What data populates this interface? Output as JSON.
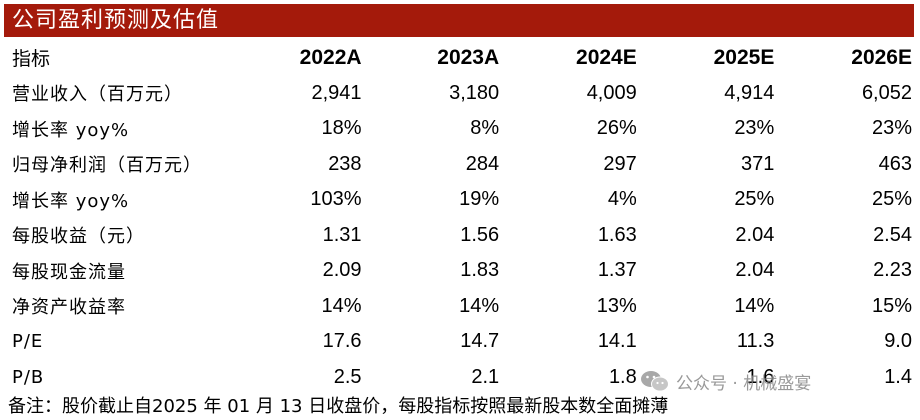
{
  "title": "公司盈利预测及估值",
  "header": {
    "label": "指标",
    "years": [
      "2022A",
      "2023A",
      "2024E",
      "2025E",
      "2026E"
    ]
  },
  "rows": [
    {
      "label": "营业收入（百万元）",
      "values": [
        "2,941",
        "3,180",
        "4,009",
        "4,914",
        "6,052"
      ]
    },
    {
      "label": "增长率 yoy%",
      "values": [
        "18%",
        "8%",
        "26%",
        "23%",
        "23%"
      ]
    },
    {
      "label": "归母净利润（百万元）",
      "values": [
        "238",
        "284",
        "297",
        "371",
        "463"
      ]
    },
    {
      "label": "增长率 yoy%",
      "values": [
        "103%",
        "19%",
        "4%",
        "25%",
        "25%"
      ]
    },
    {
      "label": "每股收益（元）",
      "values": [
        "1.31",
        "1.56",
        "1.63",
        "2.04",
        "2.54"
      ]
    },
    {
      "label": "每股现金流量",
      "values": [
        "2.09",
        "1.83",
        "1.37",
        "2.04",
        "2.23"
      ]
    },
    {
      "label": "净资产收益率",
      "values": [
        "14%",
        "14%",
        "13%",
        "14%",
        "15%"
      ]
    },
    {
      "label": "P/E",
      "values": [
        "17.6",
        "14.7",
        "14.1",
        "11.3",
        "9.0"
      ]
    },
    {
      "label": "P/B",
      "values": [
        "2.5",
        "2.1",
        "1.8",
        "1.6",
        "1.4"
      ]
    }
  ],
  "note": "备注：股价截止自2025 年 01 月 13 日收盘价，每股指标按照最新股本数全面摊薄",
  "watermark": "公众号 · 机械盛宴",
  "colors": {
    "title_bg": "#a41a0b",
    "title_text": "#ffffff",
    "watermark": "#888888"
  },
  "icons": {
    "watermark": "wechat-icon"
  }
}
